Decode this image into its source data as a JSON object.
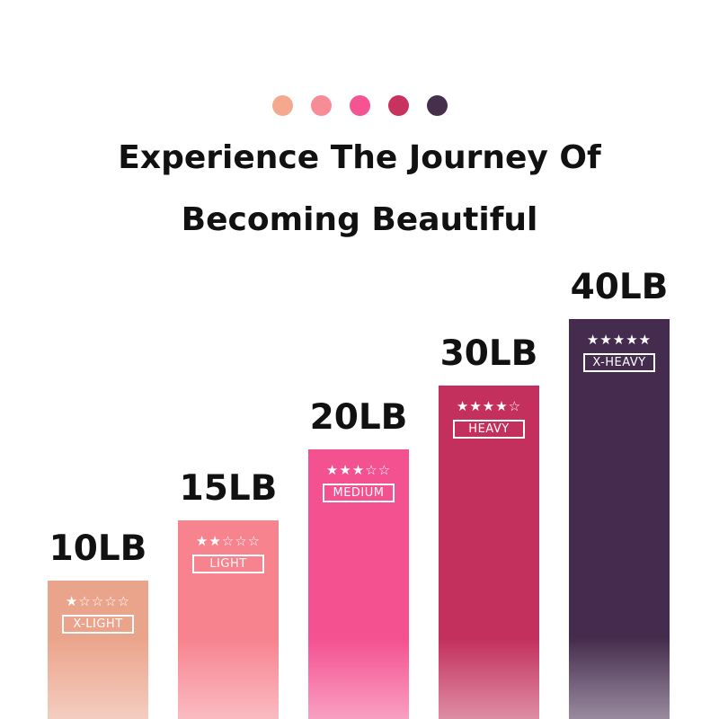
{
  "header": {
    "dot_colors": [
      "#f4a98e",
      "#f78c96",
      "#f45492",
      "#c8325f",
      "#452f4d"
    ],
    "title_line1": "Experience The Journey Of",
    "title_line2": "Becoming Beautiful"
  },
  "chart_data": {
    "type": "bar",
    "categories": [
      "10LB",
      "15LB",
      "20LB",
      "30LB",
      "40LB"
    ],
    "values": [
      10,
      15,
      20,
      30,
      40
    ],
    "unit": "LB",
    "levels": [
      "X-LIGHT",
      "LIGHT",
      "MEDIUM",
      "HEAVY",
      "X-HEAVY"
    ],
    "stars": [
      1,
      2,
      3,
      4,
      5
    ],
    "max_stars": 5,
    "colors": [
      "#eba48c",
      "#f7838f",
      "#f45190",
      "#c3305d",
      "#452c4e"
    ],
    "title": "",
    "xlabel": "",
    "ylabel": ""
  }
}
